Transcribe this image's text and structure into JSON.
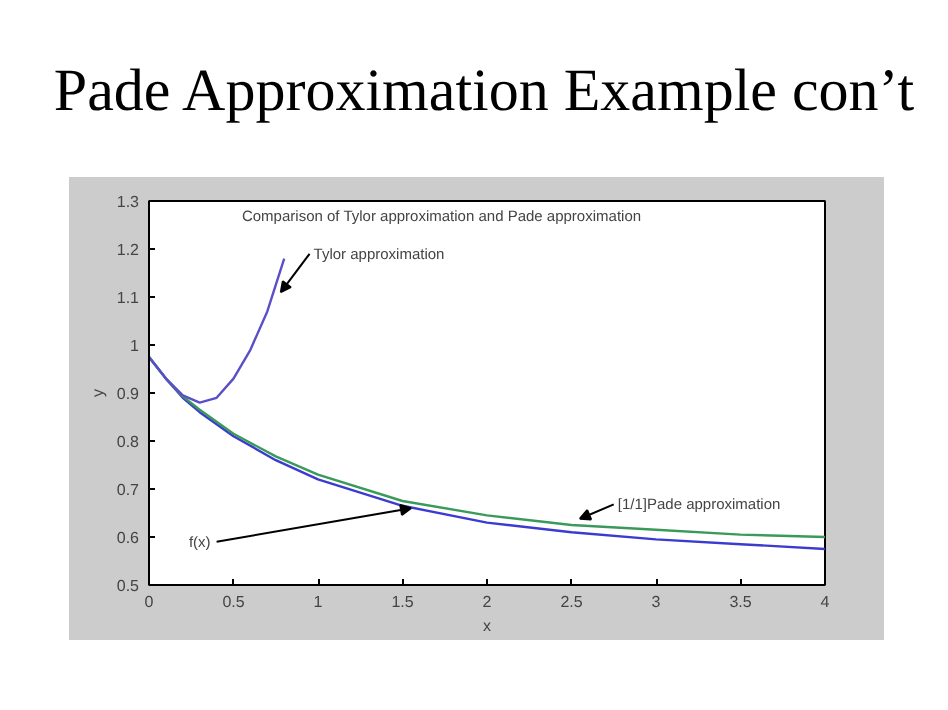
{
  "chart_data": {
    "type": "line",
    "title": "Pade Approximation Example con’t",
    "subtitle": "Comparison of Tylor approximation and Pade approximation",
    "xlabel": "x",
    "ylabel": "y",
    "xlim": [
      0,
      4
    ],
    "ylim": [
      0.5,
      1.3
    ],
    "xticks": [
      0,
      0.5,
      1,
      1.5,
      2,
      2.5,
      3,
      3.5,
      4
    ],
    "yticks": [
      0.5,
      0.6,
      0.7,
      0.8,
      0.9,
      1,
      1.1,
      1.2,
      1.3
    ],
    "grid": false,
    "series": [
      {
        "color": "#3b3bd0",
        "x": [
          0,
          0.1,
          0.2,
          0.3,
          0.5,
          0.75,
          1,
          1.5,
          2,
          2.5,
          3,
          3.5,
          4
        ],
        "values": [
          0.975,
          0.93,
          0.89,
          0.86,
          0.81,
          0.76,
          0.72,
          0.665,
          0.63,
          0.61,
          0.595,
          0.585,
          0.575
        ]
      },
      {
        "color": "#3a9a5a",
        "x": [
          0,
          0.1,
          0.2,
          0.3,
          0.5,
          0.75,
          1,
          1.5,
          2,
          2.5,
          3,
          3.5,
          4
        ],
        "values": [
          0.975,
          0.93,
          0.893,
          0.865,
          0.815,
          0.768,
          0.73,
          0.675,
          0.645,
          0.625,
          0.615,
          0.605,
          0.6
        ]
      },
      {
        "color": "#5a4fc8",
        "x": [
          0,
          0.1,
          0.2,
          0.3,
          0.4,
          0.5,
          0.6,
          0.7,
          0.8
        ],
        "values": [
          0.975,
          0.93,
          0.895,
          0.88,
          0.89,
          0.93,
          0.99,
          1.07,
          1.18
        ]
      }
    ],
    "annotations": [
      {
        "text": "Tylor approximation",
        "x": 0.78,
        "y": 1.11
      },
      {
        "text": "f(x)",
        "x": 1.55,
        "y": 0.66
      },
      {
        "text": "[1/1]Pade approximation",
        "x": 2.55,
        "y": 0.638
      }
    ]
  }
}
